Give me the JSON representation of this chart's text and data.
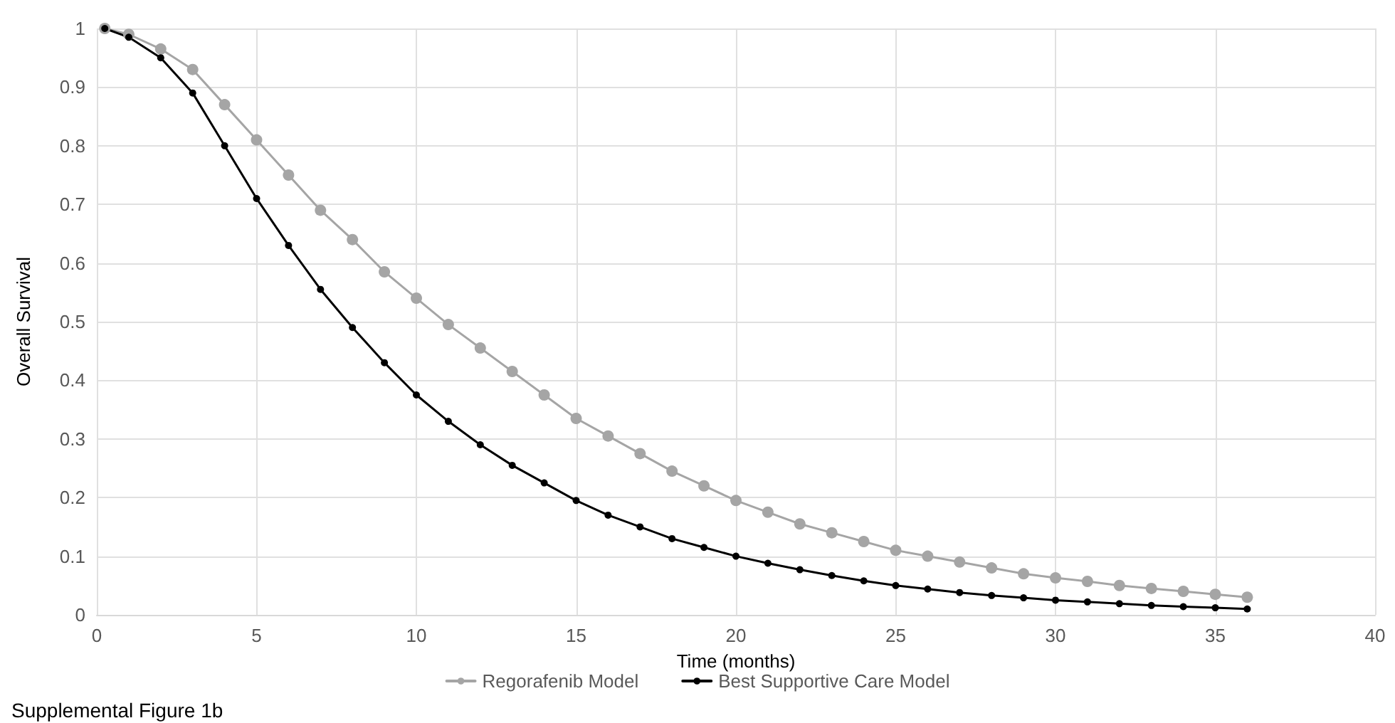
{
  "chart_data": {
    "type": "line",
    "xlabel": "Time (months)",
    "ylabel": "Overall Survival",
    "annotations": [
      "Supplemental Figure 1b"
    ],
    "x": [
      0.25,
      1,
      2,
      3,
      4,
      5,
      6,
      7,
      8,
      9,
      10,
      11,
      12,
      13,
      14,
      15,
      16,
      17,
      18,
      19,
      20,
      21,
      22,
      23,
      24,
      25,
      26,
      27,
      28,
      29,
      30,
      31,
      32,
      33,
      34,
      35,
      36
    ],
    "series": [
      {
        "name": "Regorafenib Model",
        "color": "#a5a5a5",
        "values": [
          1.0,
          0.99,
          0.965,
          0.93,
          0.87,
          0.81,
          0.75,
          0.69,
          0.64,
          0.585,
          0.54,
          0.495,
          0.455,
          0.415,
          0.375,
          0.335,
          0.305,
          0.275,
          0.245,
          0.22,
          0.195,
          0.175,
          0.155,
          0.14,
          0.125,
          0.11,
          0.1,
          0.09,
          0.08,
          0.07,
          0.063,
          0.057,
          0.05,
          0.045,
          0.04,
          0.035,
          0.03
        ]
      },
      {
        "name": "Best Supportive Care Model",
        "color": "#000000",
        "values": [
          1.0,
          0.985,
          0.95,
          0.89,
          0.8,
          0.71,
          0.63,
          0.555,
          0.49,
          0.43,
          0.375,
          0.33,
          0.29,
          0.255,
          0.225,
          0.195,
          0.17,
          0.15,
          0.13,
          0.115,
          0.1,
          0.088,
          0.077,
          0.067,
          0.058,
          0.05,
          0.044,
          0.038,
          0.033,
          0.029,
          0.025,
          0.022,
          0.019,
          0.016,
          0.014,
          0.012,
          0.01
        ]
      }
    ],
    "xlim": [
      0,
      40
    ],
    "xticks": [
      0,
      5,
      10,
      15,
      20,
      25,
      30,
      35,
      40
    ],
    "ylim": [
      0,
      1
    ],
    "yticks": [
      0,
      0.1,
      0.2,
      0.3,
      0.4,
      0.5,
      0.6,
      0.7,
      0.8,
      0.9,
      1
    ],
    "grid": true,
    "legend": "bottom",
    "marker": "circle",
    "line_style": "solid"
  }
}
